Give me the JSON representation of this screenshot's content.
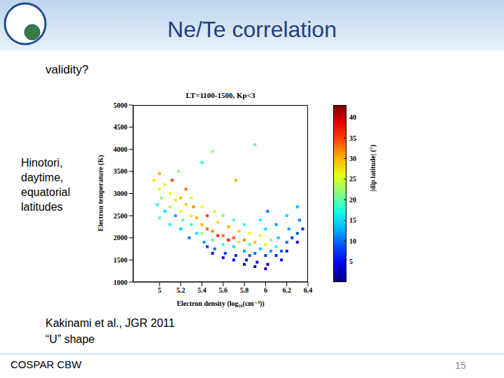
{
  "slide": {
    "title": "Ne/Te correlation",
    "question": "validity?",
    "side_text": [
      "Hinotori,",
      "daytime,",
      "equatorial",
      "latitudes"
    ],
    "citation": [
      "Kakinami et al., JGR 2011",
      "“U” shape"
    ],
    "footer": "COSPAR CBW",
    "page": "15"
  },
  "chart_data": {
    "type": "scatter",
    "title": "LT=1100-1500, Kp<3",
    "x_label": "Electron density (log₁₀(cm⁻³))",
    "y_label": "Electron temperature (K)",
    "xlim": [
      4.75,
      6.4
    ],
    "xticks": [
      5,
      5.2,
      5.4,
      5.6,
      5.8,
      6,
      6.2,
      6.4
    ],
    "ylim": [
      1000,
      5000
    ],
    "yticks": [
      1000,
      1500,
      2000,
      2500,
      3000,
      3500,
      4000,
      4500,
      5000
    ],
    "colorbar": {
      "label": "|dip latitude| (°)",
      "range": [
        0,
        43
      ],
      "ticks": [
        5,
        10,
        15,
        20,
        25,
        30,
        35,
        40
      ]
    },
    "points": [
      [
        4.95,
        3300,
        28
      ],
      [
        5.0,
        3450,
        30
      ],
      [
        5.0,
        3100,
        26
      ],
      [
        5.02,
        2900,
        22
      ],
      [
        5.05,
        3200,
        25
      ],
      [
        4.98,
        2750,
        18
      ],
      [
        5.05,
        2600,
        15
      ],
      [
        5.0,
        2450,
        20
      ],
      [
        5.1,
        3000,
        27
      ],
      [
        5.1,
        2700,
        24
      ],
      [
        5.12,
        3300,
        35
      ],
      [
        5.15,
        2500,
        12
      ],
      [
        5.15,
        2850,
        28
      ],
      [
        5.1,
        2300,
        16
      ],
      [
        5.2,
        2900,
        30
      ],
      [
        5.2,
        2600,
        26
      ],
      [
        5.22,
        2400,
        20
      ],
      [
        5.25,
        3100,
        33
      ],
      [
        5.2,
        2200,
        14
      ],
      [
        5.25,
        2750,
        29
      ],
      [
        5.18,
        3500,
        22
      ],
      [
        5.3,
        2500,
        28
      ],
      [
        5.3,
        2300,
        18
      ],
      [
        5.32,
        2700,
        32
      ],
      [
        5.35,
        2100,
        15
      ],
      [
        5.3,
        2900,
        25
      ],
      [
        5.35,
        2450,
        30
      ],
      [
        5.28,
        2000,
        10
      ],
      [
        5.4,
        2300,
        30
      ],
      [
        5.4,
        2100,
        22
      ],
      [
        5.42,
        1900,
        12
      ],
      [
        5.45,
        2500,
        35
      ],
      [
        5.4,
        2700,
        27
      ],
      [
        5.45,
        1800,
        8
      ],
      [
        5.4,
        3700,
        18
      ],
      [
        5.45,
        2200,
        33
      ],
      [
        5.5,
        2150,
        32
      ],
      [
        5.5,
        1950,
        20
      ],
      [
        5.52,
        1750,
        10
      ],
      [
        5.55,
        2350,
        28
      ],
      [
        5.5,
        1650,
        6
      ],
      [
        5.55,
        2050,
        36
      ],
      [
        5.5,
        3950,
        22
      ],
      [
        5.52,
        2600,
        25
      ],
      [
        5.6,
        2050,
        33
      ],
      [
        5.6,
        1850,
        18
      ],
      [
        5.62,
        1650,
        8
      ],
      [
        5.65,
        2250,
        30
      ],
      [
        5.6,
        1550,
        5
      ],
      [
        5.65,
        1950,
        38
      ],
      [
        5.6,
        2500,
        22
      ],
      [
        5.7,
        2000,
        34
      ],
      [
        5.7,
        1800,
        15
      ],
      [
        5.72,
        1600,
        7
      ],
      [
        5.75,
        2150,
        29
      ],
      [
        5.7,
        1500,
        4
      ],
      [
        5.75,
        1900,
        25
      ],
      [
        5.7,
        2400,
        20
      ],
      [
        5.72,
        3300,
        30
      ],
      [
        5.8,
        1950,
        32
      ],
      [
        5.8,
        1700,
        12
      ],
      [
        5.82,
        1500,
        5
      ],
      [
        5.85,
        2100,
        27
      ],
      [
        5.8,
        1400,
        3
      ],
      [
        5.85,
        1850,
        20
      ],
      [
        5.8,
        2300,
        18
      ],
      [
        5.85,
        1600,
        9
      ],
      [
        5.9,
        1900,
        30
      ],
      [
        5.9,
        1650,
        10
      ],
      [
        5.92,
        1450,
        4
      ],
      [
        5.95,
        2050,
        26
      ],
      [
        5.9,
        1350,
        3
      ],
      [
        5.95,
        1750,
        14
      ],
      [
        5.9,
        4100,
        20
      ],
      [
        5.95,
        2400,
        16
      ],
      [
        6.0,
        1850,
        28
      ],
      [
        6.0,
        1600,
        8
      ],
      [
        6.02,
        1400,
        4
      ],
      [
        6.05,
        1950,
        22
      ],
      [
        6.0,
        1300,
        2
      ],
      [
        6.05,
        1700,
        12
      ],
      [
        6.0,
        2200,
        15
      ],
      [
        6.02,
        2600,
        10
      ],
      [
        6.1,
        1800,
        18
      ],
      [
        6.1,
        1600,
        7
      ],
      [
        6.12,
        2000,
        14
      ],
      [
        6.15,
        1700,
        9
      ],
      [
        6.1,
        2300,
        12
      ],
      [
        6.15,
        1500,
        5
      ],
      [
        6.2,
        1900,
        10
      ],
      [
        6.2,
        1700,
        6
      ],
      [
        6.22,
        2200,
        12
      ],
      [
        6.25,
        2000,
        8
      ],
      [
        6.2,
        2500,
        14
      ],
      [
        6.3,
        2100,
        9
      ],
      [
        6.3,
        1900,
        6
      ],
      [
        6.32,
        2400,
        11
      ],
      [
        6.35,
        2200,
        7
      ],
      [
        6.3,
        2700,
        13
      ]
    ]
  }
}
